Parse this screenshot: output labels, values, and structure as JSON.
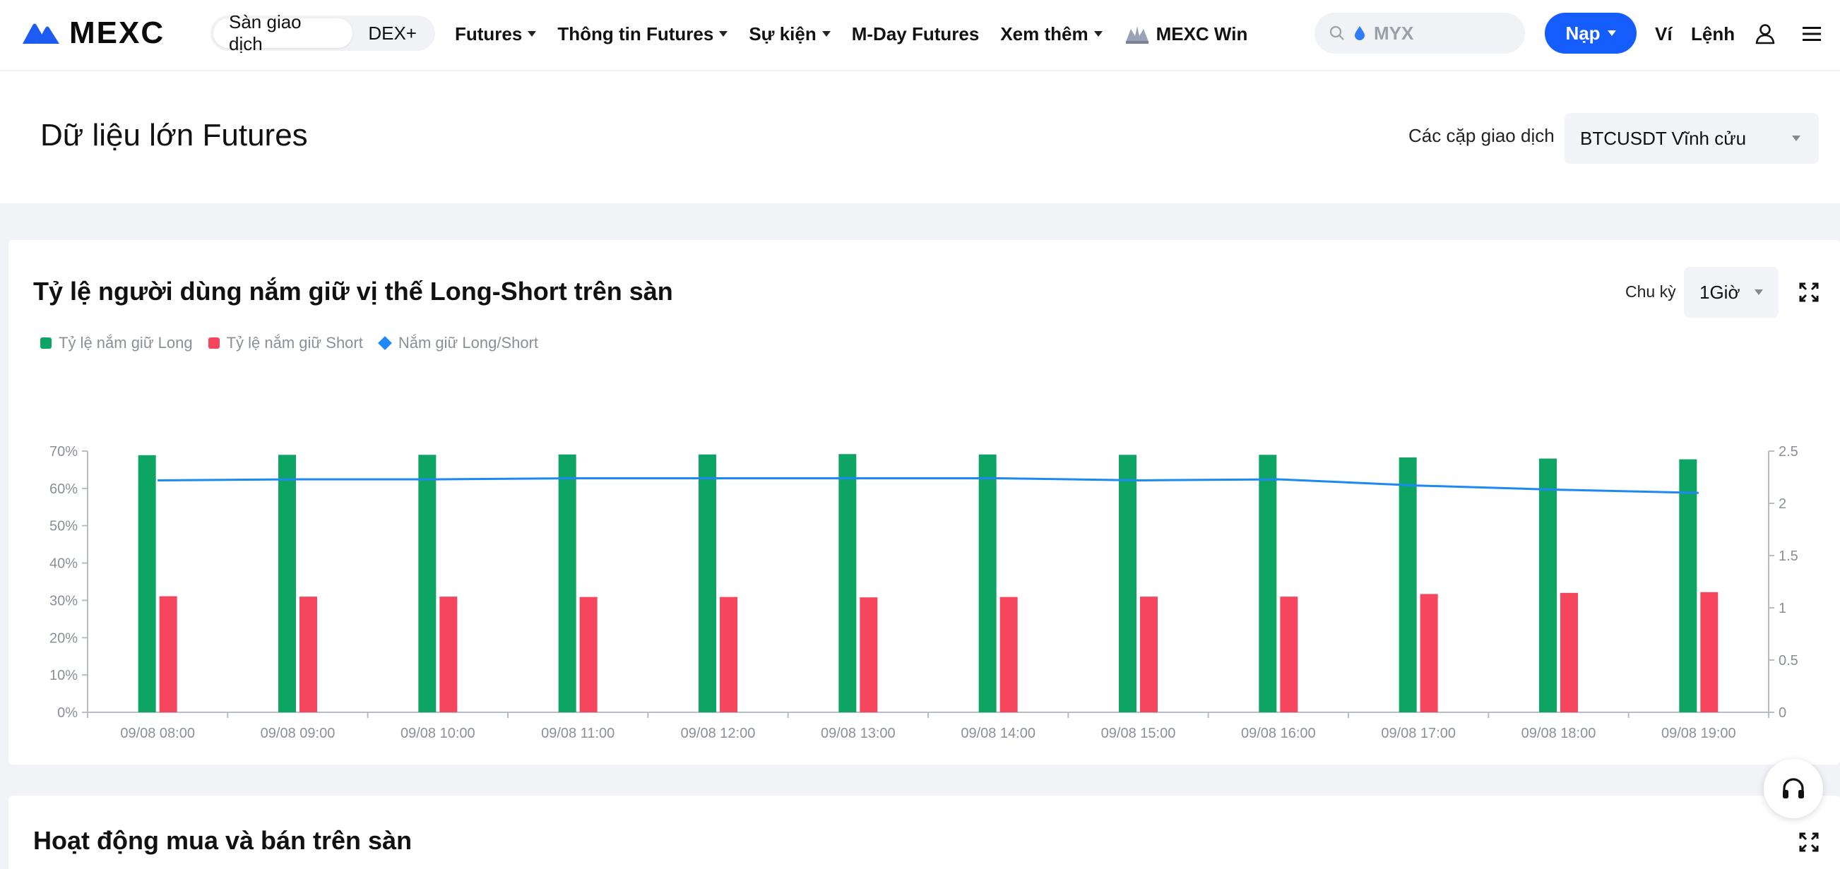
{
  "header": {
    "logo_text": "MEXC",
    "modes": [
      {
        "label": "Sàn giao dịch",
        "active": true
      },
      {
        "label": "DEX+",
        "active": false
      }
    ],
    "nav": [
      {
        "label": "Futures",
        "dropdown": true
      },
      {
        "label": "Thông tin Futures",
        "dropdown": true
      },
      {
        "label": "Sự kiện",
        "dropdown": true
      },
      {
        "label": "M-Day Futures",
        "dropdown": false
      },
      {
        "label": "Xem thêm",
        "dropdown": true
      },
      {
        "label": "MEXC Win",
        "dropdown": false
      }
    ],
    "search_placeholder": "MYX",
    "deposit_label": "Nạp",
    "wallet_label": "Ví",
    "orders_label": "Lệnh",
    "accent_color": "#155dfc"
  },
  "page": {
    "title": "Dữ liệu lớn Futures",
    "pair_label": "Các cặp giao dịch",
    "pair_value": "BTCUSDT Vĩnh cửu"
  },
  "card": {
    "title": "Tỷ lệ người dùng nắm giữ vị thế Long-Short trên sàn",
    "period_label": "Chu kỳ",
    "period_value": "1Giờ",
    "legend": [
      {
        "label": "Tỷ lệ nắm giữ Long",
        "color": "#0ea564",
        "shape": "square"
      },
      {
        "label": "Tỷ lệ nắm giữ Short",
        "color": "#f6465d",
        "shape": "square"
      },
      {
        "label": "Nắm giữ Long/Short",
        "color": "#1e88f5",
        "shape": "diamond"
      }
    ]
  },
  "chart_data": {
    "type": "bar",
    "categories": [
      "09/08 08:00",
      "09/08 09:00",
      "09/08 10:00",
      "09/08 11:00",
      "09/08 12:00",
      "09/08 13:00",
      "09/08 14:00",
      "09/08 15:00",
      "09/08 16:00",
      "09/08 17:00",
      "09/08 18:00",
      "09/08 19:00"
    ],
    "series": [
      {
        "name": "Tỷ lệ nắm giữ Long",
        "type": "bar",
        "axis": "left",
        "color": "#0ea564",
        "values": [
          68.9,
          69.0,
          69.0,
          69.1,
          69.1,
          69.2,
          69.1,
          69.0,
          69.0,
          68.3,
          68.0,
          67.8
        ]
      },
      {
        "name": "Tỷ lệ nắm giữ Short",
        "type": "bar",
        "axis": "left",
        "color": "#f6465d",
        "values": [
          31.1,
          31.0,
          31.0,
          30.9,
          30.9,
          30.8,
          30.9,
          31.0,
          31.0,
          31.7,
          32.0,
          32.2
        ]
      },
      {
        "name": "Nắm giữ Long/Short",
        "type": "line",
        "axis": "right",
        "color": "#1e88f5",
        "values": [
          2.22,
          2.23,
          2.23,
          2.24,
          2.24,
          2.24,
          2.24,
          2.22,
          2.23,
          2.17,
          2.13,
          2.1
        ]
      }
    ],
    "y_left": {
      "min": 0,
      "max": 70,
      "ticks": [
        "0%",
        "10%",
        "20%",
        "30%",
        "40%",
        "50%",
        "60%",
        "70%"
      ]
    },
    "y_right": {
      "min": 0,
      "max": 2.5,
      "ticks": [
        "0",
        "0.5",
        "1",
        "1.5",
        "2",
        "2.5"
      ]
    },
    "grid": false,
    "legend_position": "top-left"
  },
  "card2": {
    "title": "Hoạt động mua và bán trên sàn"
  }
}
